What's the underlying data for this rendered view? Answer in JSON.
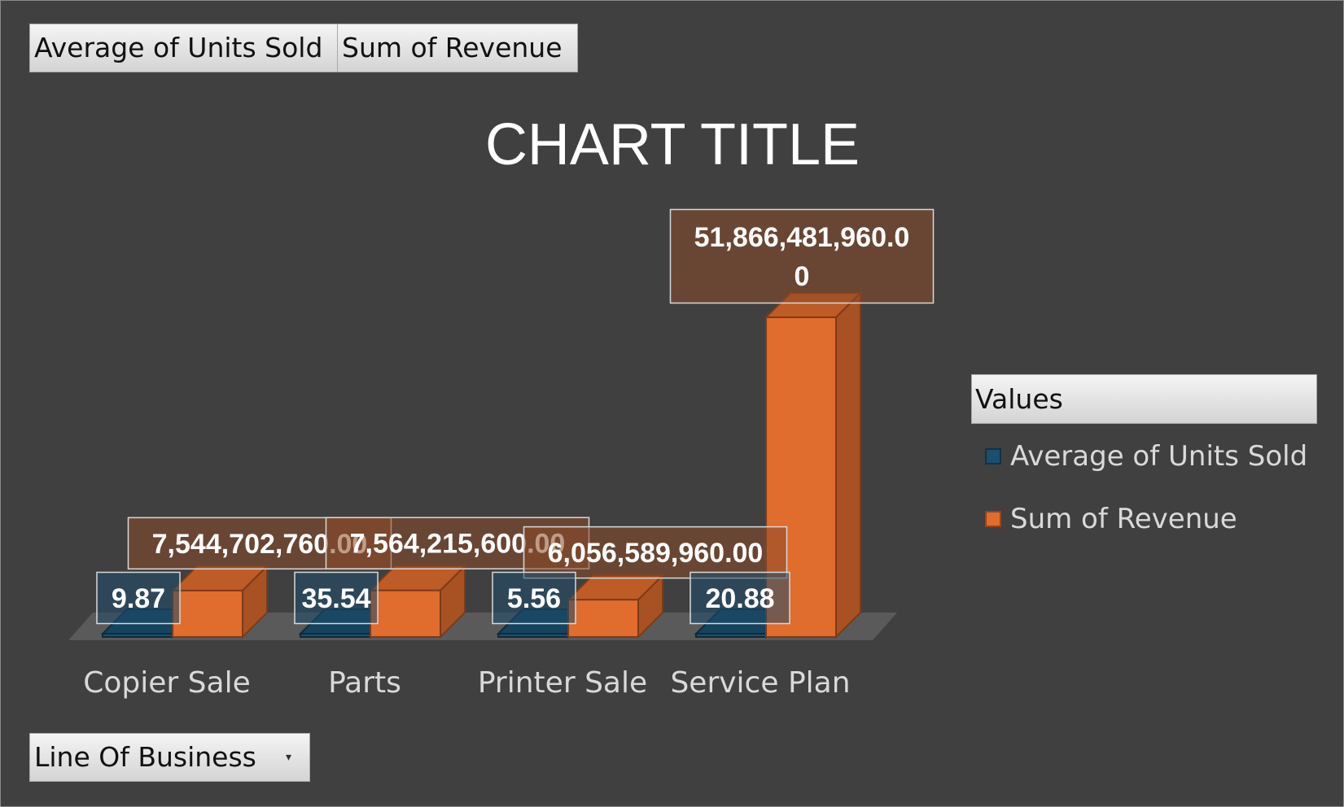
{
  "pivot_fields": {
    "values": [
      "Average  of Units Sold",
      "Sum of Revenue"
    ],
    "axis_field": "Line Of Business"
  },
  "legend": {
    "header": "Values",
    "items": [
      {
        "label": "Average of Units Sold",
        "color": "#1a4f6e"
      },
      {
        "label": "Sum of Revenue",
        "color": "#e06c2e"
      }
    ]
  },
  "colors": {
    "background": "#404040",
    "units_series": "#1a4f6e",
    "revenue_series": "#e06c2e",
    "label_text": "#ffffff",
    "axis_text": "#d9d9d9"
  },
  "chart_data": {
    "type": "bar",
    "title": "CHART TITLE",
    "categories": [
      "Copier Sale",
      "Parts",
      "Printer Sale",
      "Service Plan"
    ],
    "series": [
      {
        "name": "Average of Units Sold",
        "values": [
          9.87,
          35.54,
          5.56,
          20.88
        ],
        "labels": [
          "9.87",
          "35.54",
          "5.56",
          "20.88"
        ]
      },
      {
        "name": "Sum of Revenue",
        "values": [
          7544702760,
          7564215600,
          6056589960,
          51866481960
        ],
        "labels": [
          "7,544,702,760.00",
          "7,564,215,600.00",
          "6,056,589,960.00",
          "51,866,481,960.00"
        ]
      }
    ],
    "ylim": [
      0,
      51866481960
    ],
    "grid": false,
    "legend_position": "right",
    "style": "3d-column"
  }
}
